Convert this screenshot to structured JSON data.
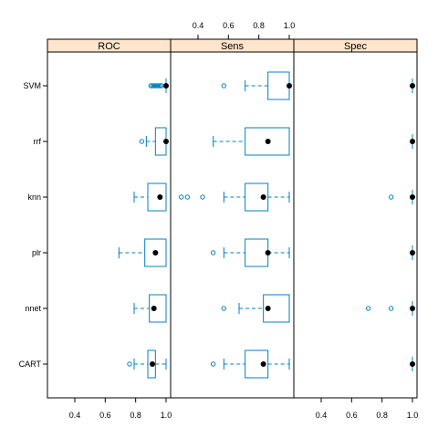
{
  "chart_data": {
    "type": "box",
    "title": "",
    "panels": [
      "ROC",
      "Sens",
      "Spec"
    ],
    "models": [
      "SVM",
      "rrf",
      "knn",
      "plr",
      "nnet",
      "CART"
    ],
    "x_ticks": [
      "0.4",
      "0.6",
      "0.8",
      "1.0"
    ],
    "x_tick_values": [
      0.4,
      0.6,
      0.8,
      1.0
    ],
    "xlim": [
      0.22,
      1.03
    ],
    "tick_axis_placement": {
      "ROC": "bottom",
      "Sens": "top",
      "Spec": "bottom"
    },
    "strip_color": "#ffe5cc",
    "box_color": "#0080c0",
    "median_color": "#000000",
    "stats": {
      "ROC": {
        "SVM": {
          "wlo": 1.0,
          "q1": 1.0,
          "med": 1.0,
          "q3": 1.0,
          "whi": 1.0,
          "outliers": [
            0.9,
            0.91,
            0.92,
            0.93,
            0.94,
            0.95,
            0.96,
            0.97
          ]
        },
        "rrf": {
          "wlo": 0.87,
          "q1": 0.93,
          "med": 1.0,
          "q3": 1.0,
          "whi": 1.0,
          "outliers": [
            0.84
          ]
        },
        "knn": {
          "wlo": 0.79,
          "q1": 0.88,
          "med": 0.96,
          "q3": 1.0,
          "whi": 1.0,
          "outliers": []
        },
        "plr": {
          "wlo": 0.69,
          "q1": 0.86,
          "med": 0.93,
          "q3": 1.0,
          "whi": 1.0,
          "outliers": []
        },
        "nnet": {
          "wlo": 0.79,
          "q1": 0.89,
          "med": 0.92,
          "q3": 1.0,
          "whi": 1.0,
          "outliers": []
        },
        "CART": {
          "wlo": 0.79,
          "q1": 0.88,
          "med": 0.91,
          "q3": 0.93,
          "whi": 1.0,
          "outliers": [
            0.76
          ]
        }
      },
      "Sens": {
        "SVM": {
          "wlo": 0.71,
          "q1": 0.86,
          "med": 1.0,
          "q3": 1.0,
          "whi": 1.0,
          "outliers": [
            0.57
          ]
        },
        "rrf": {
          "wlo": 0.5,
          "q1": 0.71,
          "med": 0.86,
          "q3": 1.0,
          "whi": 1.0,
          "outliers": []
        },
        "knn": {
          "wlo": 0.57,
          "q1": 0.71,
          "med": 0.83,
          "q3": 0.86,
          "whi": 1.0,
          "outliers": [
            0.29,
            0.33,
            0.43
          ]
        },
        "plr": {
          "wlo": 0.57,
          "q1": 0.71,
          "med": 0.86,
          "q3": 0.86,
          "whi": 1.0,
          "outliers": [
            0.5
          ]
        },
        "nnet": {
          "wlo": 0.67,
          "q1": 0.83,
          "med": 0.86,
          "q3": 1.0,
          "whi": 1.0,
          "outliers": [
            0.57
          ]
        },
        "CART": {
          "wlo": 0.57,
          "q1": 0.71,
          "med": 0.83,
          "q3": 0.86,
          "whi": 1.0,
          "outliers": [
            0.5
          ]
        }
      },
      "Spec": {
        "SVM": {
          "wlo": 1.0,
          "q1": 1.0,
          "med": 1.0,
          "q3": 1.0,
          "whi": 1.0,
          "outliers": []
        },
        "rrf": {
          "wlo": 1.0,
          "q1": 1.0,
          "med": 1.0,
          "q3": 1.0,
          "whi": 1.0,
          "outliers": []
        },
        "knn": {
          "wlo": 1.0,
          "q1": 1.0,
          "med": 1.0,
          "q3": 1.0,
          "whi": 1.0,
          "outliers": [
            0.86
          ]
        },
        "plr": {
          "wlo": 1.0,
          "q1": 1.0,
          "med": 1.0,
          "q3": 1.0,
          "whi": 1.0,
          "outliers": []
        },
        "nnet": {
          "wlo": 1.0,
          "q1": 1.0,
          "med": 1.0,
          "q3": 1.0,
          "whi": 1.0,
          "outliers": [
            0.71,
            0.86
          ]
        },
        "CART": {
          "wlo": 1.0,
          "q1": 1.0,
          "med": 1.0,
          "q3": 1.0,
          "whi": 1.0,
          "outliers": []
        }
      }
    }
  }
}
